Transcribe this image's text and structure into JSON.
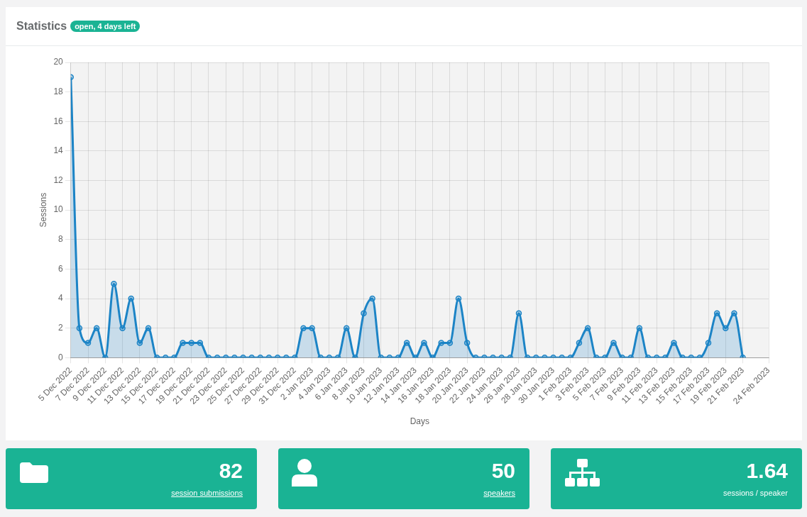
{
  "chart_data": [
    {
      "type": "area",
      "title": "Statistics",
      "subtitle": "open, 4 days left",
      "xlabel": "Days",
      "ylabel": "Sessions",
      "x": [
        "2022-12-05",
        "2022-12-06",
        "2022-12-07",
        "2022-12-08",
        "2022-12-09",
        "2022-12-10",
        "2022-12-11",
        "2022-12-12",
        "2022-12-13",
        "2022-12-14",
        "2022-12-15",
        "2022-12-16",
        "2022-12-17",
        "2022-12-18",
        "2022-12-19",
        "2022-12-20",
        "2022-12-21",
        "2022-12-22",
        "2022-12-23",
        "2022-12-24",
        "2022-12-25",
        "2022-12-26",
        "2022-12-27",
        "2022-12-28",
        "2022-12-29",
        "2022-12-30",
        "2022-12-31",
        "2023-01-01",
        "2023-01-02",
        "2023-01-03",
        "2023-01-04",
        "2023-01-05",
        "2023-01-06",
        "2023-01-07",
        "2023-01-08",
        "2023-01-09",
        "2023-01-10",
        "2023-01-11",
        "2023-01-12",
        "2023-01-13",
        "2023-01-14",
        "2023-01-15",
        "2023-01-16",
        "2023-01-17",
        "2023-01-18",
        "2023-01-19",
        "2023-01-20",
        "2023-01-21",
        "2023-01-22",
        "2023-01-23",
        "2023-01-24",
        "2023-01-25",
        "2023-01-26",
        "2023-01-27",
        "2023-01-28",
        "2023-01-29",
        "2023-01-30",
        "2023-01-31",
        "2023-02-01",
        "2023-02-02",
        "2023-02-03",
        "2023-02-04",
        "2023-02-05",
        "2023-02-06",
        "2023-02-07",
        "2023-02-08",
        "2023-02-09",
        "2023-02-10",
        "2023-02-11",
        "2023-02-12",
        "2023-02-13",
        "2023-02-14",
        "2023-02-15",
        "2023-02-16",
        "2023-02-17",
        "2023-02-18",
        "2023-02-19",
        "2023-02-20",
        "2023-02-21"
      ],
      "values": [
        19,
        2,
        1,
        2,
        0,
        5,
        2,
        4,
        1,
        2,
        0,
        0,
        0,
        1,
        1,
        1,
        0,
        0,
        0,
        0,
        0,
        0,
        0,
        0,
        0,
        0,
        0,
        2,
        2,
        0,
        0,
        0,
        2,
        0,
        3,
        4,
        0,
        0,
        0,
        1,
        0,
        1,
        0,
        1,
        1,
        4,
        1,
        0,
        0,
        0,
        0,
        0,
        3,
        0,
        0,
        0,
        0,
        0,
        0,
        1,
        2,
        0,
        0,
        1,
        0,
        0,
        2,
        0,
        0,
        0,
        1,
        0,
        0,
        0,
        1,
        3,
        2,
        3,
        0
      ],
      "color": "#1c84c6",
      "marker": "circle",
      "grid": true,
      "xlim": [
        "2022-12-05",
        "2023-02-24"
      ],
      "xticks": [
        {
          "value": "2022-12-05",
          "label": "5 Dec 2022"
        },
        {
          "value": "2022-12-07",
          "label": "7 Dec 2022"
        },
        {
          "value": "2022-12-09",
          "label": "9 Dec 2022"
        },
        {
          "value": "2022-12-11",
          "label": "11 Dec 2022"
        },
        {
          "value": "2022-12-13",
          "label": "13 Dec 2022"
        },
        {
          "value": "2022-12-15",
          "label": "15 Dec 2022"
        },
        {
          "value": "2022-12-17",
          "label": "17 Dec 2022"
        },
        {
          "value": "2022-12-19",
          "label": "19 Dec 2022"
        },
        {
          "value": "2022-12-21",
          "label": "21 Dec 2022"
        },
        {
          "value": "2022-12-23",
          "label": "23 Dec 2022"
        },
        {
          "value": "2022-12-25",
          "label": "25 Dec 2022"
        },
        {
          "value": "2022-12-27",
          "label": "27 Dec 2022"
        },
        {
          "value": "2022-12-29",
          "label": "29 Dec 2022"
        },
        {
          "value": "2022-12-31",
          "label": "31 Dec 2022"
        },
        {
          "value": "2023-01-02",
          "label": "2 Jan 2023"
        },
        {
          "value": "2023-01-04",
          "label": "4 Jan 2023"
        },
        {
          "value": "2023-01-06",
          "label": "6 Jan 2023"
        },
        {
          "value": "2023-01-08",
          "label": "8 Jan 2023"
        },
        {
          "value": "2023-01-10",
          "label": "10 Jan 2023"
        },
        {
          "value": "2023-01-12",
          "label": "12 Jan 2023"
        },
        {
          "value": "2023-01-14",
          "label": "14 Jan 2023"
        },
        {
          "value": "2023-01-16",
          "label": "16 Jan 2023"
        },
        {
          "value": "2023-01-18",
          "label": "18 Jan 2023"
        },
        {
          "value": "2023-01-20",
          "label": "20 Jan 2023"
        },
        {
          "value": "2023-01-22",
          "label": "22 Jan 2023"
        },
        {
          "value": "2023-01-24",
          "label": "24 Jan 2023"
        },
        {
          "value": "2023-01-26",
          "label": "26 Jan 2023"
        },
        {
          "value": "2023-01-28",
          "label": "28 Jan 2023"
        },
        {
          "value": "2023-01-30",
          "label": "30 Jan 2023"
        },
        {
          "value": "2023-02-01",
          "label": "1 Feb 2023"
        },
        {
          "value": "2023-02-03",
          "label": "3 Feb 2023"
        },
        {
          "value": "2023-02-05",
          "label": "5 Feb 2023"
        },
        {
          "value": "2023-02-07",
          "label": "7 Feb 2023"
        },
        {
          "value": "2023-02-09",
          "label": "9 Feb 2023"
        },
        {
          "value": "2023-02-11",
          "label": "11 Feb 2023"
        },
        {
          "value": "2023-02-13",
          "label": "13 Feb 2023"
        },
        {
          "value": "2023-02-15",
          "label": "15 Feb 2023"
        },
        {
          "value": "2023-02-17",
          "label": "17 Feb 2023"
        },
        {
          "value": "2023-02-19",
          "label": "19 Feb 2023"
        },
        {
          "value": "2023-02-21",
          "label": "21 Feb 2023"
        },
        {
          "value": "2023-02-24",
          "label": "24 Feb 2023"
        }
      ],
      "ylim": [
        0,
        20
      ],
      "yticks": [
        0,
        2,
        4,
        6,
        8,
        10,
        12,
        14,
        16,
        18,
        20
      ]
    },
    {
      "type": "other",
      "annotations": [
        "82",
        "session submissions"
      ]
    },
    {
      "type": "other",
      "annotations": [
        "50",
        "speakers"
      ]
    },
    {
      "type": "other",
      "annotations": [
        "1.64",
        "sessions / speaker"
      ]
    }
  ]
}
